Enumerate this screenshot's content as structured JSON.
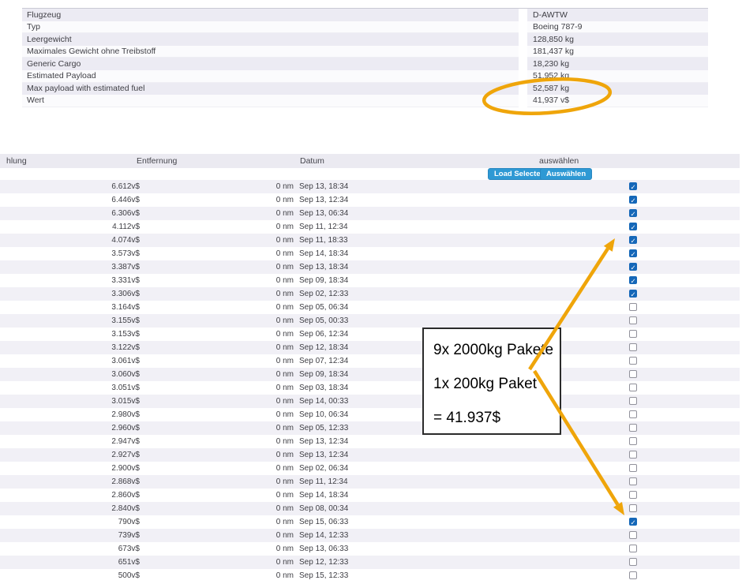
{
  "aircraft_table": {
    "rows": [
      {
        "label": "Flugzeug",
        "value": "D-AWTW"
      },
      {
        "label": "Typ",
        "value": "Boeing 787-9"
      },
      {
        "label": "Leergewicht",
        "value": "128,850 kg"
      },
      {
        "label": "Maximales Gewicht ohne Treibstoff",
        "value": "181,437 kg"
      },
      {
        "label": "Generic Cargo",
        "value": "18,230 kg"
      },
      {
        "label": "Estimated Payload",
        "value": "51,952 kg"
      },
      {
        "label": "Max payload with estimated fuel",
        "value": "52,587 kg"
      },
      {
        "label": "Wert",
        "value": "41,937 v$"
      }
    ]
  },
  "jobs_table": {
    "headers": {
      "payment": "hlung",
      "distance": "Entfernung",
      "date": "Datum",
      "select": "auswählen"
    },
    "toolbar": {
      "load_selected_label": "Load Selected",
      "auswaehlen_label": "Auswählen"
    },
    "rows": [
      {
        "value": "6.612v$",
        "distance": "0 nm",
        "date": "Sep 13, 18:34",
        "checked": true
      },
      {
        "value": "6.446v$",
        "distance": "0 nm",
        "date": "Sep 13, 12:34",
        "checked": true
      },
      {
        "value": "6.306v$",
        "distance": "0 nm",
        "date": "Sep 13, 06:34",
        "checked": true
      },
      {
        "value": "4.112v$",
        "distance": "0 nm",
        "date": "Sep 11, 12:34",
        "checked": true
      },
      {
        "value": "4.074v$",
        "distance": "0 nm",
        "date": "Sep 11, 18:33",
        "checked": true
      },
      {
        "value": "3.573v$",
        "distance": "0 nm",
        "date": "Sep 14, 18:34",
        "checked": true
      },
      {
        "value": "3.387v$",
        "distance": "0 nm",
        "date": "Sep 13, 18:34",
        "checked": true
      },
      {
        "value": "3.331v$",
        "distance": "0 nm",
        "date": "Sep 09, 18:34",
        "checked": true
      },
      {
        "value": "3.306v$",
        "distance": "0 nm",
        "date": "Sep 02, 12:33",
        "checked": true
      },
      {
        "value": "3.164v$",
        "distance": "0 nm",
        "date": "Sep 05, 06:34",
        "checked": false
      },
      {
        "value": "3.155v$",
        "distance": "0 nm",
        "date": "Sep 05, 00:33",
        "checked": false
      },
      {
        "value": "3.153v$",
        "distance": "0 nm",
        "date": "Sep 06, 12:34",
        "checked": false
      },
      {
        "value": "3.122v$",
        "distance": "0 nm",
        "date": "Sep 12, 18:34",
        "checked": false
      },
      {
        "value": "3.061v$",
        "distance": "0 nm",
        "date": "Sep 07, 12:34",
        "checked": false
      },
      {
        "value": "3.060v$",
        "distance": "0 nm",
        "date": "Sep 09, 18:34",
        "checked": false
      },
      {
        "value": "3.051v$",
        "distance": "0 nm",
        "date": "Sep 03, 18:34",
        "checked": false
      },
      {
        "value": "3.015v$",
        "distance": "0 nm",
        "date": "Sep 14, 00:33",
        "checked": false
      },
      {
        "value": "2.980v$",
        "distance": "0 nm",
        "date": "Sep 10, 06:34",
        "checked": false
      },
      {
        "value": "2.960v$",
        "distance": "0 nm",
        "date": "Sep 05, 12:33",
        "checked": false
      },
      {
        "value": "2.947v$",
        "distance": "0 nm",
        "date": "Sep 13, 12:34",
        "checked": false
      },
      {
        "value": "2.927v$",
        "distance": "0 nm",
        "date": "Sep 13, 12:34",
        "checked": false
      },
      {
        "value": "2.900v$",
        "distance": "0 nm",
        "date": "Sep 02, 06:34",
        "checked": false
      },
      {
        "value": "2.868v$",
        "distance": "0 nm",
        "date": "Sep 11, 12:34",
        "checked": false
      },
      {
        "value": "2.860v$",
        "distance": "0 nm",
        "date": "Sep 14, 18:34",
        "checked": false
      },
      {
        "value": "2.840v$",
        "distance": "0 nm",
        "date": "Sep 08, 00:34",
        "checked": false
      },
      {
        "value": "790v$",
        "distance": "0 nm",
        "date": "Sep 15, 06:33",
        "checked": true
      },
      {
        "value": "739v$",
        "distance": "0 nm",
        "date": "Sep 14, 12:33",
        "checked": false
      },
      {
        "value": "673v$",
        "distance": "0 nm",
        "date": "Sep 13, 06:33",
        "checked": false
      },
      {
        "value": "651v$",
        "distance": "0 nm",
        "date": "Sep 12, 12:33",
        "checked": false
      },
      {
        "value": "500v$",
        "distance": "0 nm",
        "date": "Sep 15, 12:33",
        "checked": false
      }
    ]
  },
  "annotation": {
    "lines": [
      "9x 2000kg Pakete",
      "1x 200kg Paket",
      "= 41.937$"
    ]
  },
  "colors": {
    "button_blue": "#2E99D4",
    "checkbox_blue": "#1567B8",
    "highlight_gold": "#EFA50A",
    "row_stripe": "#F1F0F6",
    "header_gray": "#EBEAF1"
  }
}
